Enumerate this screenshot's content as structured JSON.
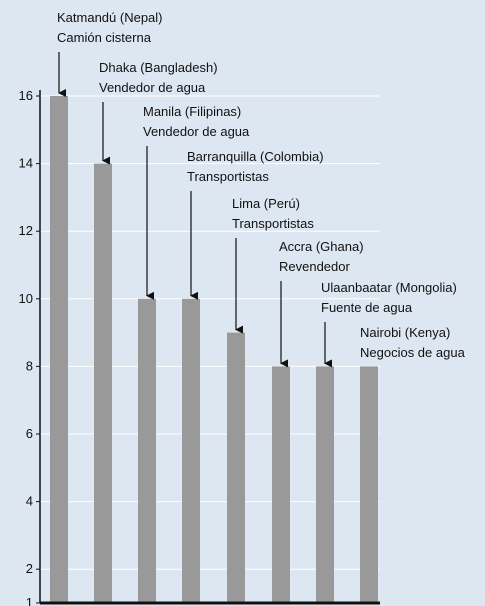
{
  "chart_data": {
    "type": "bar",
    "categories": [
      "Katmandú (Nepal)",
      "Dhaka (Bangladesh)",
      "Manila (Filipinas)",
      "Barranquilla (Colombia)",
      "Lima (Perú)",
      "Accra (Ghana)",
      "Ulaanbaatar (Mongolia)",
      "Nairobi (Kenya)"
    ],
    "sublabels": [
      "Camión cisterna",
      "Vendedor de agua",
      "Vendedor de agua",
      "Transportistas",
      "Transportistas",
      "Revendedor",
      "Fuente de agua",
      "Negocios de agua"
    ],
    "values": [
      16,
      14,
      10,
      10,
      9,
      8,
      8,
      8
    ],
    "color": "#999999",
    "ylim": [
      1,
      16
    ],
    "yticks": [
      1,
      2,
      4,
      6,
      8,
      10,
      12,
      14,
      16
    ],
    "grid": true
  }
}
